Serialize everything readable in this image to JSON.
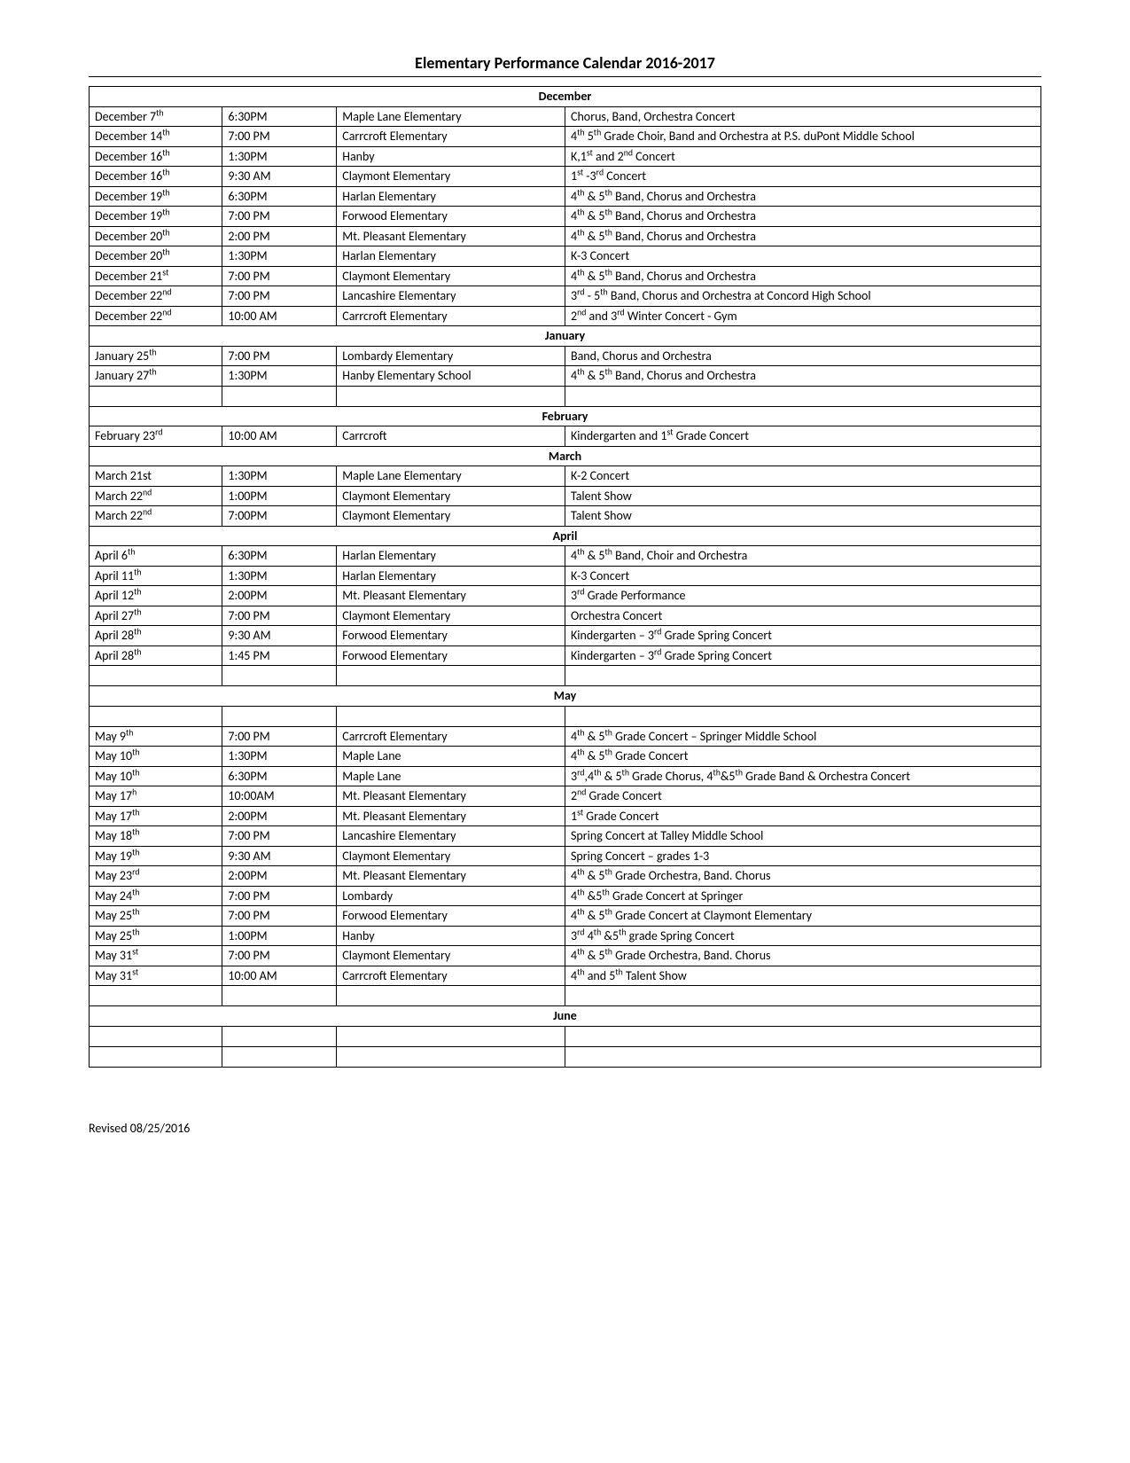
{
  "title": "Elementary Performance Calendar 2016-2017",
  "footer": "Revised 08/25/2016",
  "sections": [
    {
      "month": "December",
      "rows": [
        {
          "date": "December 7",
          "ord": "th",
          "time": "6:30PM",
          "loc": "Maple Lane Elementary",
          "desc_parts": [
            [
              "Chorus, Band, Orchestra Concert",
              ""
            ]
          ]
        },
        {
          "date": "December 14",
          "ord": "th",
          "time": "7:00 PM",
          "loc": "Carrcroft Elementary",
          "desc_parts": [
            [
              "4",
              "th"
            ],
            [
              " 5",
              "th"
            ],
            [
              " Grade Choir, Band and Orchestra at P.S. duPont Middle School",
              ""
            ]
          ]
        },
        {
          "date": "December 16",
          "ord": "th",
          "time": "1:30PM",
          "loc": "Hanby",
          "desc_parts": [
            [
              "K,1",
              "st"
            ],
            [
              " and 2",
              "nd"
            ],
            [
              " Concert",
              ""
            ]
          ]
        },
        {
          "date": "December 16",
          "ord": "th",
          "time": "9:30 AM",
          "loc": "Claymont Elementary",
          "desc_parts": [
            [
              "1",
              "st"
            ],
            [
              " -3",
              "rd"
            ],
            [
              " Concert",
              ""
            ]
          ]
        },
        {
          "date": "December 19",
          "ord": "th",
          "time": "6:30PM",
          "loc": "Harlan Elementary",
          "desc_parts": [
            [
              "4",
              "th"
            ],
            [
              " & 5",
              "th"
            ],
            [
              "  Band, Chorus and Orchestra",
              ""
            ]
          ]
        },
        {
          "date": "December 19",
          "ord": "th",
          "time": "7:00 PM",
          "loc": "Forwood Elementary",
          "desc_parts": [
            [
              "4",
              "th"
            ],
            [
              " & 5",
              "th"
            ],
            [
              "  Band, Chorus and Orchestra",
              ""
            ]
          ]
        },
        {
          "date": "December 20",
          "ord": "th",
          "time": "2:00 PM",
          "loc": "Mt. Pleasant Elementary",
          "desc_parts": [
            [
              "4",
              "th"
            ],
            [
              " & 5",
              "th"
            ],
            [
              "  Band, Chorus and Orchestra",
              ""
            ]
          ]
        },
        {
          "date": "December 20",
          "ord": "th",
          "time": "1:30PM",
          "loc": "Harlan Elementary",
          "desc_parts": [
            [
              "K-3 Concert",
              ""
            ]
          ]
        },
        {
          "date": "December 21",
          "ord": "st",
          "time": "7:00 PM",
          "loc": "Claymont Elementary",
          "desc_parts": [
            [
              "4",
              "th"
            ],
            [
              " & 5",
              "th"
            ],
            [
              "  Band, Chorus and Orchestra",
              ""
            ]
          ]
        },
        {
          "date": "December 22",
          "ord": "nd",
          "time": "7:00 PM",
          "loc": "Lancashire Elementary",
          "desc_parts": [
            [
              "3",
              "rd"
            ],
            [
              " - 5",
              "th"
            ],
            [
              "  Band, Chorus and Orchestra at Concord High School",
              ""
            ]
          ]
        },
        {
          "date": "December 22",
          "ord": "nd",
          "time": "10:00 AM",
          "loc": "Carrcroft Elementary",
          "desc_parts": [
            [
              "2",
              "nd"
            ],
            [
              " and 3",
              "rd"
            ],
            [
              " Winter Concert - Gym",
              ""
            ]
          ]
        }
      ]
    },
    {
      "month": "January",
      "rows": [
        {
          "date": "January 25",
          "ord": "th",
          "time": "7:00 PM",
          "loc": "Lombardy Elementary",
          "desc_parts": [
            [
              "Band, Chorus and Orchestra",
              ""
            ]
          ]
        },
        {
          "date": "January 27",
          "ord": "th",
          "time": "1:30PM",
          "loc": "Hanby Elementary School",
          "desc_parts": [
            [
              "4",
              "th"
            ],
            [
              " & 5",
              "th"
            ],
            [
              "  Band, Chorus and Orchestra",
              ""
            ]
          ]
        }
      ],
      "trailing_empty": 1
    },
    {
      "month": "February",
      "rows": [
        {
          "date": "February 23",
          "ord": "rd",
          "time": "10:00 AM",
          "loc": "Carrcroft",
          "desc_parts": [
            [
              "Kindergarten and 1",
              "st"
            ],
            [
              " Grade Concert",
              ""
            ]
          ]
        }
      ]
    },
    {
      "month": "March",
      "rows": [
        {
          "date": "March 21st",
          "ord": "",
          "time": "1:30PM",
          "loc": "Maple Lane Elementary",
          "desc_parts": [
            [
              "K-2 Concert",
              ""
            ]
          ]
        },
        {
          "date": "March 22",
          "ord": "nd",
          "time": "1:00PM",
          "loc": "Claymont Elementary",
          "desc_parts": [
            [
              "Talent Show",
              ""
            ]
          ]
        },
        {
          "date": "March 22",
          "ord": "nd",
          "time": "7:00PM",
          "loc": "Claymont Elementary",
          "desc_parts": [
            [
              "Talent Show",
              ""
            ]
          ]
        }
      ]
    },
    {
      "month": "April",
      "rows": [
        {
          "date": "April 6",
          "ord": "th",
          "time": "6:30PM",
          "loc": "Harlan Elementary",
          "desc_parts": [
            [
              "4",
              "th"
            ],
            [
              " & 5",
              "th"
            ],
            [
              " Band, Choir and Orchestra",
              ""
            ]
          ]
        },
        {
          "date": "April 11",
          "ord": "th",
          "time": "1:30PM",
          "loc": "Harlan Elementary",
          "desc_parts": [
            [
              "K-3 Concert",
              ""
            ]
          ]
        },
        {
          "date": "April 12",
          "ord": "th",
          "time": "2:00PM",
          "loc": "Mt. Pleasant Elementary",
          "desc_parts": [
            [
              "3",
              "rd"
            ],
            [
              "  Grade Performance",
              ""
            ]
          ]
        },
        {
          "date": "April 27",
          "ord": "th",
          "time": "7:00 PM",
          "loc": "Claymont Elementary",
          "desc_parts": [
            [
              "Orchestra Concert",
              ""
            ]
          ]
        },
        {
          "date": "April 28",
          "ord": "th",
          "time": "9:30 AM",
          "loc": "Forwood Elementary",
          "desc_parts": [
            [
              "Kindergarten – 3",
              "rd"
            ],
            [
              " Grade Spring Concert",
              ""
            ]
          ]
        },
        {
          "date": "April 28",
          "ord": "th",
          "time": "1:45 PM",
          "loc": "Forwood Elementary",
          "desc_parts": [
            [
              "Kindergarten – 3",
              "rd"
            ],
            [
              " Grade Spring Concert",
              ""
            ]
          ]
        }
      ],
      "trailing_empty": 1
    },
    {
      "month": "May",
      "leading_empty": 1,
      "rows": [
        {
          "date": "May 9",
          "ord": "th",
          "time": "7:00 PM",
          "loc": "Carrcroft Elementary",
          "desc_parts": [
            [
              "4",
              "th"
            ],
            [
              " & 5",
              "th"
            ],
            [
              " Grade Concert – Springer Middle School",
              ""
            ]
          ]
        },
        {
          "date": "May 10",
          "ord": "th",
          "time": "1:30PM",
          "loc": "Maple Lane",
          "desc_parts": [
            [
              "4",
              "th"
            ],
            [
              " & 5",
              "th"
            ],
            [
              " Grade Concert",
              ""
            ]
          ]
        },
        {
          "date": "May 10",
          "ord": "th",
          "time": "6:30PM",
          "loc": "Maple Lane",
          "desc_parts": [
            [
              "3",
              "rd"
            ],
            [
              ",4",
              "th"
            ],
            [
              " & 5",
              "th"
            ],
            [
              " Grade Chorus, 4",
              "th"
            ],
            [
              "&5",
              "th"
            ],
            [
              " Grade Band & Orchestra Concert",
              ""
            ]
          ]
        },
        {
          "date": "May 17",
          "ord": "h",
          "time": "10:00AM",
          "loc": "Mt. Pleasant Elementary",
          "desc_parts": [
            [
              "2",
              "nd"
            ],
            [
              " Grade Concert",
              ""
            ]
          ]
        },
        {
          "date": "May 17",
          "ord": "th",
          "time": "2:00PM",
          "loc": "Mt. Pleasant Elementary",
          "desc_parts": [
            [
              "1",
              "st"
            ],
            [
              "  Grade Concert",
              ""
            ]
          ]
        },
        {
          "date": "May 18",
          "ord": "th",
          "time": "7:00 PM",
          "loc": "Lancashire Elementary",
          "desc_parts": [
            [
              "Spring Concert at Talley Middle School",
              ""
            ]
          ]
        },
        {
          "date": "May 19",
          "ord": "th",
          "time": "9:30 AM",
          "loc": "Claymont Elementary",
          "desc_parts": [
            [
              "Spring Concert – grades 1-3",
              ""
            ]
          ]
        },
        {
          "date": "May 23",
          "ord": "rd",
          "time": "2:00PM",
          "loc": "Mt. Pleasant Elementary",
          "desc_parts": [
            [
              "4",
              "th"
            ],
            [
              " & 5",
              "th"
            ],
            [
              " Grade Orchestra, Band. Chorus",
              ""
            ]
          ]
        },
        {
          "date": "May 24",
          "ord": "th",
          "time": "7:00 PM",
          "loc": "Lombardy",
          "desc_parts": [
            [
              "4",
              "th"
            ],
            [
              " &5",
              "th"
            ],
            [
              " Grade Concert at Springer",
              ""
            ]
          ]
        },
        {
          "date": "May 25",
          "ord": "th",
          "time": "7:00 PM",
          "loc": "Forwood Elementary",
          "desc_parts": [
            [
              "4",
              "th"
            ],
            [
              " & 5",
              "th"
            ],
            [
              " Grade Concert at Claymont Elementary",
              ""
            ]
          ]
        },
        {
          "date": "May 25",
          "ord": "th",
          "time": "1:00PM",
          "loc": "Hanby",
          "desc_parts": [
            [
              "3",
              "rd"
            ],
            [
              " 4",
              "th"
            ],
            [
              " &5",
              "th"
            ],
            [
              " grade Spring Concert",
              ""
            ]
          ]
        },
        {
          "date": "May 31",
          "ord": "st",
          "time": "7:00 PM",
          "loc": "Claymont Elementary",
          "desc_parts": [
            [
              "4",
              "th"
            ],
            [
              " & 5",
              "th"
            ],
            [
              " Grade Orchestra, Band. Chorus",
              ""
            ]
          ]
        },
        {
          "date": "May 31",
          "ord": "st",
          "time": "10:00 AM",
          "loc": "Carrcroft Elementary",
          "desc_parts": [
            [
              "4",
              "th"
            ],
            [
              " and 5",
              "th"
            ],
            [
              " Talent Show",
              ""
            ]
          ]
        }
      ],
      "trailing_empty": 1
    },
    {
      "month": "June",
      "rows": [],
      "trailing_empty": 2
    }
  ]
}
